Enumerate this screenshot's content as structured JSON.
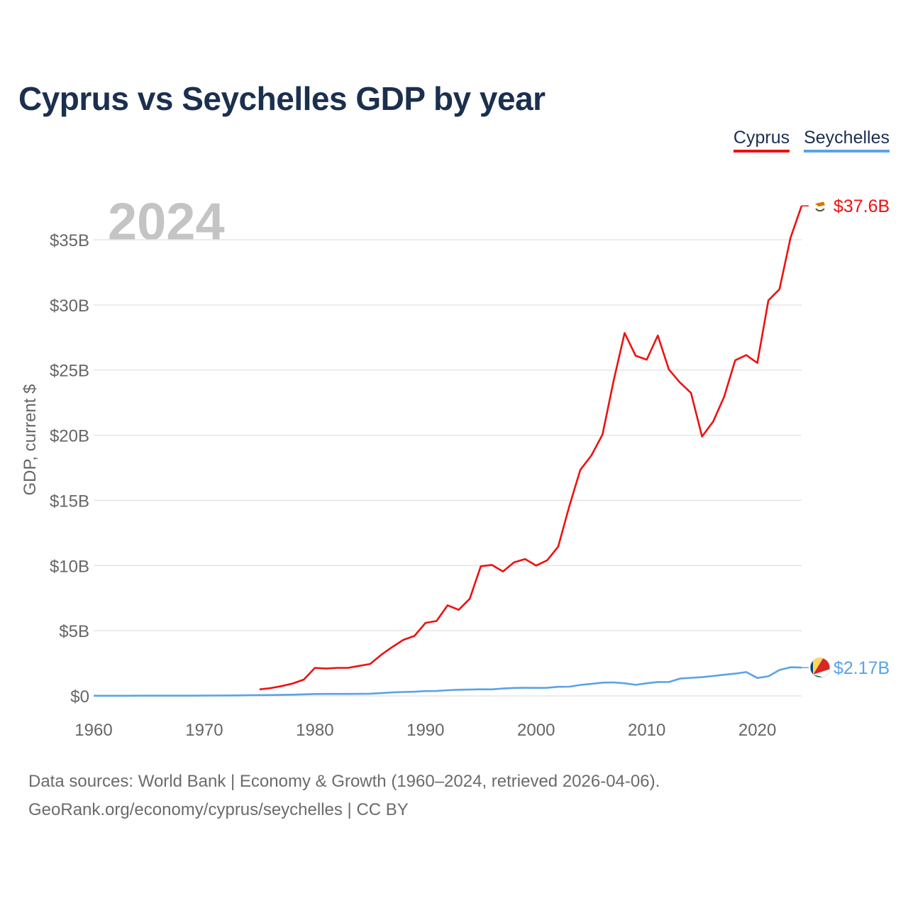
{
  "title": "Cyprus vs Seychelles GDP by year",
  "legend": {
    "cyprus": "Cyprus",
    "seychelles": "Seychelles"
  },
  "year_watermark": "2024",
  "source_line1": "Data sources: World Bank | Economy & Growth (1960–2024, retrieved 2026-04-06).",
  "source_line2": "GeoRank.org/economy/cyprus/seychelles | CC BY",
  "colors": {
    "cyprus": "#ee1111",
    "seychelles": "#5ba3e6",
    "grid": "#e6e6e6",
    "axis_text": "#666666",
    "watermark": "#c4c4c4"
  },
  "chart_data": {
    "type": "line",
    "title": "Cyprus vs Seychelles GDP by year",
    "xlabel": "",
    "ylabel": "GDP, current $",
    "xlim": [
      1960,
      2024
    ],
    "ylim": [
      0,
      35
    ],
    "y_unit": "billion US$",
    "x_ticks": [
      1960,
      1970,
      1980,
      1990,
      2000,
      2010,
      2020
    ],
    "x_tick_labels": [
      "1960",
      "1970",
      "1980",
      "1990",
      "2000",
      "2010",
      "2020"
    ],
    "y_ticks": [
      0,
      5,
      10,
      15,
      20,
      25,
      30,
      35
    ],
    "y_tick_labels": [
      "$0",
      "$5B",
      "$10B",
      "$15B",
      "$20B",
      "$25B",
      "$30B",
      "$35B"
    ],
    "grid": true,
    "legend_position": "top-right",
    "series": [
      {
        "name": "Cyprus",
        "end_label": "$37.6B",
        "x": [
          1975,
          1976,
          1977,
          1978,
          1979,
          1980,
          1981,
          1982,
          1983,
          1984,
          1985,
          1986,
          1987,
          1988,
          1989,
          1990,
          1991,
          1992,
          1993,
          1994,
          1995,
          1996,
          1997,
          1998,
          1999,
          2000,
          2001,
          2002,
          2003,
          2004,
          2005,
          2006,
          2007,
          2008,
          2009,
          2010,
          2011,
          2012,
          2013,
          2014,
          2015,
          2016,
          2017,
          2018,
          2019,
          2020,
          2021,
          2022,
          2023,
          2024
        ],
        "values": [
          0.5,
          0.6,
          0.75,
          0.95,
          1.25,
          2.15,
          2.1,
          2.15,
          2.15,
          2.3,
          2.45,
          3.15,
          3.75,
          4.3,
          4.6,
          5.6,
          5.75,
          6.95,
          6.6,
          7.45,
          9.95,
          10.05,
          9.55,
          10.25,
          10.5,
          10.0,
          10.4,
          11.45,
          14.55,
          17.35,
          18.45,
          20.05,
          24.15,
          27.85,
          26.1,
          25.8,
          27.65,
          25.05,
          24.05,
          23.25,
          19.9,
          21.05,
          22.95,
          25.75,
          26.15,
          25.55,
          30.35,
          31.2,
          35.15,
          37.6
        ]
      },
      {
        "name": "Seychelles",
        "end_label": "$2.17B",
        "x": [
          1960,
          1961,
          1962,
          1963,
          1964,
          1965,
          1966,
          1967,
          1968,
          1969,
          1970,
          1971,
          1972,
          1973,
          1974,
          1975,
          1976,
          1977,
          1978,
          1979,
          1980,
          1981,
          1982,
          1983,
          1984,
          1985,
          1986,
          1987,
          1988,
          1989,
          1990,
          1991,
          1992,
          1993,
          1994,
          1995,
          1996,
          1997,
          1998,
          1999,
          2000,
          2001,
          2002,
          2003,
          2004,
          2005,
          2006,
          2007,
          2008,
          2009,
          2010,
          2011,
          2012,
          2013,
          2014,
          2015,
          2016,
          2017,
          2018,
          2019,
          2020,
          2021,
          2022,
          2023,
          2024
        ],
        "values": [
          0.012,
          0.012,
          0.013,
          0.013,
          0.014,
          0.015,
          0.016,
          0.017,
          0.018,
          0.019,
          0.02,
          0.025,
          0.03,
          0.04,
          0.05,
          0.06,
          0.065,
          0.075,
          0.09,
          0.12,
          0.147,
          0.15,
          0.15,
          0.155,
          0.16,
          0.169,
          0.214,
          0.264,
          0.3,
          0.32,
          0.369,
          0.374,
          0.433,
          0.474,
          0.487,
          0.508,
          0.503,
          0.564,
          0.608,
          0.62,
          0.615,
          0.622,
          0.698,
          0.706,
          0.839,
          0.919,
          1.016,
          1.033,
          0.967,
          0.847,
          0.97,
          1.066,
          1.06,
          1.328,
          1.39,
          1.437,
          1.53,
          1.62,
          1.71,
          1.83,
          1.375,
          1.5,
          1.985,
          2.2,
          2.17
        ]
      }
    ]
  }
}
